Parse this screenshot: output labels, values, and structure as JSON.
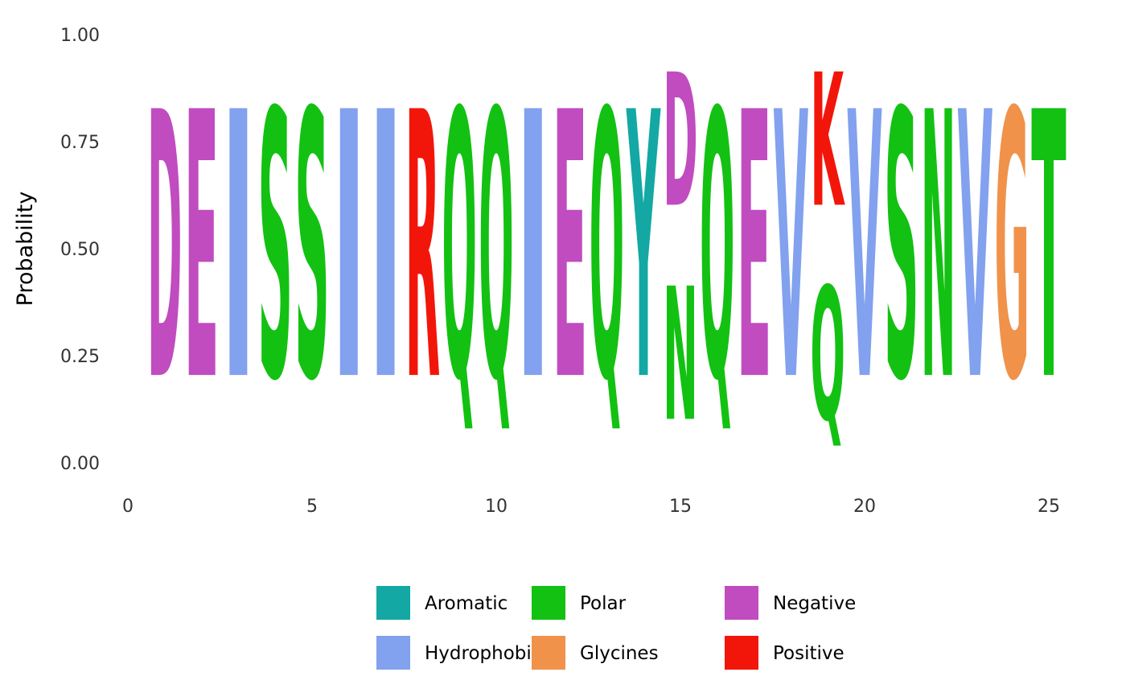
{
  "chart_data": {
    "type": "sequence-logo",
    "title": "",
    "xlabel": "",
    "ylabel": "Probability",
    "xlim": [
      0,
      25.5
    ],
    "ylim": [
      0,
      1
    ],
    "x_ticks": [
      0,
      5,
      10,
      15,
      20,
      25
    ],
    "x_tick_labels": [
      "0",
      "5",
      "10",
      "15",
      "20",
      "25"
    ],
    "y_ticks": [
      0,
      0.25,
      0.5,
      0.75,
      1
    ],
    "y_tick_labels": [
      "0.00",
      "0.25",
      "0.50",
      "0.75",
      "1.00"
    ],
    "grid": false,
    "legend_position": "bottom",
    "groups": [
      {
        "name": "Aromatic",
        "color": "#13A8A3"
      },
      {
        "name": "Hydrophobic",
        "color": "#82A1EE"
      },
      {
        "name": "Polar",
        "color": "#13C113"
      },
      {
        "name": "Glycines",
        "color": "#F0924A"
      },
      {
        "name": "Negative",
        "color": "#C04CC0"
      },
      {
        "name": "Positive",
        "color": "#F2160A"
      }
    ],
    "positions": [
      {
        "pos": 1,
        "letters": [
          {
            "char": "D",
            "prob": 1.0,
            "group": "Negative"
          }
        ]
      },
      {
        "pos": 2,
        "letters": [
          {
            "char": "E",
            "prob": 1.0,
            "group": "Negative"
          }
        ]
      },
      {
        "pos": 3,
        "letters": [
          {
            "char": "I",
            "prob": 1.0,
            "group": "Hydrophobic"
          }
        ]
      },
      {
        "pos": 4,
        "letters": [
          {
            "char": "S",
            "prob": 1.0,
            "group": "Polar"
          }
        ]
      },
      {
        "pos": 5,
        "letters": [
          {
            "char": "S",
            "prob": 1.0,
            "group": "Polar"
          }
        ]
      },
      {
        "pos": 6,
        "letters": [
          {
            "char": "I",
            "prob": 1.0,
            "group": "Hydrophobic"
          }
        ]
      },
      {
        "pos": 7,
        "letters": [
          {
            "char": "I",
            "prob": 1.0,
            "group": "Hydrophobic"
          }
        ]
      },
      {
        "pos": 8,
        "letters": [
          {
            "char": "R",
            "prob": 1.0,
            "group": "Positive"
          }
        ]
      },
      {
        "pos": 9,
        "letters": [
          {
            "char": "Q",
            "prob": 1.0,
            "group": "Polar"
          }
        ]
      },
      {
        "pos": 10,
        "letters": [
          {
            "char": "Q",
            "prob": 1.0,
            "group": "Polar"
          }
        ]
      },
      {
        "pos": 11,
        "letters": [
          {
            "char": "I",
            "prob": 1.0,
            "group": "Hydrophobic"
          }
        ]
      },
      {
        "pos": 12,
        "letters": [
          {
            "char": "E",
            "prob": 1.0,
            "group": "Negative"
          }
        ]
      },
      {
        "pos": 13,
        "letters": [
          {
            "char": "Q",
            "prob": 1.0,
            "group": "Polar"
          }
        ]
      },
      {
        "pos": 14,
        "letters": [
          {
            "char": "Y",
            "prob": 1.0,
            "group": "Aromatic"
          }
        ]
      },
      {
        "pos": 15,
        "letters": [
          {
            "char": "N",
            "prob": 0.5,
            "group": "Polar"
          },
          {
            "char": "D",
            "prob": 0.5,
            "group": "Negative"
          }
        ]
      },
      {
        "pos": 16,
        "letters": [
          {
            "char": "Q",
            "prob": 1.0,
            "group": "Polar"
          }
        ]
      },
      {
        "pos": 17,
        "letters": [
          {
            "char": "E",
            "prob": 1.0,
            "group": "Negative"
          }
        ]
      },
      {
        "pos": 18,
        "letters": [
          {
            "char": "V",
            "prob": 1.0,
            "group": "Hydrophobic"
          }
        ]
      },
      {
        "pos": 19,
        "letters": [
          {
            "char": "Q",
            "prob": 0.5,
            "group": "Polar"
          },
          {
            "char": "K",
            "prob": 0.5,
            "group": "Positive"
          }
        ]
      },
      {
        "pos": 20,
        "letters": [
          {
            "char": "V",
            "prob": 1.0,
            "group": "Hydrophobic"
          }
        ]
      },
      {
        "pos": 21,
        "letters": [
          {
            "char": "S",
            "prob": 1.0,
            "group": "Polar"
          }
        ]
      },
      {
        "pos": 22,
        "letters": [
          {
            "char": "N",
            "prob": 1.0,
            "group": "Polar"
          }
        ]
      },
      {
        "pos": 23,
        "letters": [
          {
            "char": "V",
            "prob": 1.0,
            "group": "Hydrophobic"
          }
        ]
      },
      {
        "pos": 24,
        "letters": [
          {
            "char": "G",
            "prob": 1.0,
            "group": "Glycines"
          }
        ]
      },
      {
        "pos": 25,
        "letters": [
          {
            "char": "T",
            "prob": 1.0,
            "group": "Polar"
          }
        ]
      }
    ]
  }
}
